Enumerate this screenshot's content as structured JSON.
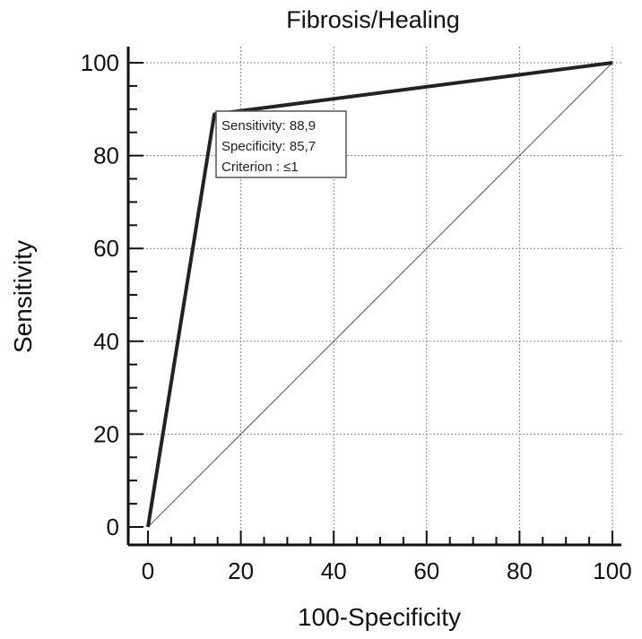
{
  "chart_data": {
    "type": "line",
    "title": "Fibrosis/Healing",
    "xlabel": "100-Specificity",
    "ylabel": "Sensitivity",
    "xlim": [
      0,
      100
    ],
    "ylim": [
      0,
      100
    ],
    "xticks": [
      "0",
      "20",
      "40",
      "60",
      "80",
      "100"
    ],
    "yticks": [
      "0",
      "20",
      "40",
      "60",
      "80",
      "100"
    ],
    "grid": true,
    "series": [
      {
        "x": [
          0,
          14.3,
          100
        ],
        "y": [
          0,
          88.9,
          100
        ]
      }
    ],
    "reference_line": {
      "x": [
        0,
        100
      ],
      "y": [
        0,
        100
      ]
    },
    "callout": {
      "lines": [
        "Sensitivity: 88,9",
        "Specificity: 85,7",
        "Criterion : ≤1"
      ]
    },
    "colors": {
      "curve": "#222222",
      "reference": "#555555",
      "grid": "#888888",
      "axes": "#111111"
    }
  }
}
